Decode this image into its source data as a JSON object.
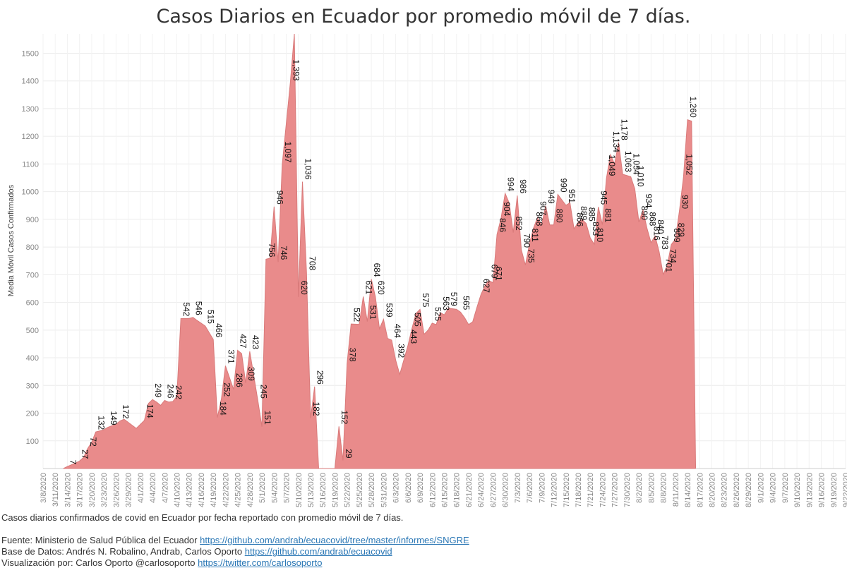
{
  "chart_data": {
    "type": "area",
    "title": "Casos Diarios en Ecuador por promedio móvil de 7 días.",
    "ylabel": "Media Móvil Casos Confirmados",
    "xlabel": "",
    "ylim": [
      0,
      1570
    ],
    "yticks": [
      100,
      200,
      300,
      400,
      500,
      600,
      700,
      800,
      900,
      1000,
      1100,
      1200,
      1300,
      1400,
      1500
    ],
    "x_range": [
      "2020-03-08",
      "2020-09-22"
    ],
    "xtick_labels": [
      "3/8/2020",
      "3/11/2020",
      "3/14/2020",
      "3/17/2020",
      "3/20/2020",
      "3/23/2020",
      "3/26/2020",
      "3/29/2020",
      "4/1/2020",
      "4/4/2020",
      "4/7/2020",
      "4/10/2020",
      "4/13/2020",
      "4/16/2020",
      "4/19/2020",
      "4/22/2020",
      "4/25/2020",
      "4/28/2020",
      "5/1/2020",
      "5/4/2020",
      "5/7/2020",
      "5/10/2020",
      "5/13/2020",
      "5/16/2020",
      "5/19/2020",
      "5/22/2020",
      "5/25/2020",
      "5/28/2020",
      "5/31/2020",
      "6/3/2020",
      "6/6/2020",
      "6/9/2020",
      "6/12/2020",
      "6/15/2020",
      "6/18/2020",
      "6/21/2020",
      "6/24/2020",
      "6/27/2020",
      "6/30/2020",
      "7/3/2020",
      "7/6/2020",
      "7/9/2020",
      "7/12/2020",
      "7/15/2020",
      "7/18/2020",
      "7/21/2020",
      "7/24/2020",
      "7/27/2020",
      "7/30/2020",
      "8/2/2020",
      "8/5/2020",
      "8/8/2020",
      "8/11/2020",
      "8/14/2020",
      "8/17/2020",
      "8/20/2020",
      "8/23/2020",
      "8/26/2020",
      "8/29/2020",
      "9/1/2020",
      "9/4/2020",
      "9/7/2020",
      "9/10/2020",
      "9/13/2020",
      "9/16/2020",
      "9/19/2020",
      "9/22/2020"
    ],
    "grid": true,
    "color": "#e98b8b",
    "points": [
      {
        "x": "2020-03-13",
        "y": 0
      },
      {
        "x": "2020-03-14",
        "y": 7
      },
      {
        "x": "2020-03-16",
        "y": 20
      },
      {
        "x": "2020-03-17",
        "y": 27
      },
      {
        "x": "2020-03-18",
        "y": 40
      },
      {
        "x": "2020-03-19",
        "y": 72
      },
      {
        "x": "2020-03-20",
        "y": 95
      },
      {
        "x": "2020-03-21",
        "y": 132
      },
      {
        "x": "2020-03-23",
        "y": 140
      },
      {
        "x": "2020-03-24",
        "y": 149
      },
      {
        "x": "2020-03-26",
        "y": 160
      },
      {
        "x": "2020-03-27",
        "y": 172
      },
      {
        "x": "2020-03-28",
        "y": 178
      },
      {
        "x": "2020-03-31",
        "y": 145
      },
      {
        "x": "2020-04-02",
        "y": 174
      },
      {
        "x": "2020-04-03",
        "y": 235
      },
      {
        "x": "2020-04-04",
        "y": 249
      },
      {
        "x": "2020-04-05",
        "y": 240
      },
      {
        "x": "2020-04-06",
        "y": 228
      },
      {
        "x": "2020-04-07",
        "y": 246
      },
      {
        "x": "2020-04-08",
        "y": 240
      },
      {
        "x": "2020-04-09",
        "y": 242
      },
      {
        "x": "2020-04-10",
        "y": 260
      },
      {
        "x": "2020-04-11",
        "y": 542
      },
      {
        "x": "2020-04-13",
        "y": 542
      },
      {
        "x": "2020-04-14",
        "y": 546
      },
      {
        "x": "2020-04-15",
        "y": 535
      },
      {
        "x": "2020-04-17",
        "y": 515
      },
      {
        "x": "2020-04-19",
        "y": 466
      },
      {
        "x": "2020-04-20",
        "y": 184
      },
      {
        "x": "2020-04-21",
        "y": 252
      },
      {
        "x": "2020-04-22",
        "y": 371
      },
      {
        "x": "2020-04-24",
        "y": 286
      },
      {
        "x": "2020-04-25",
        "y": 427
      },
      {
        "x": "2020-04-26",
        "y": 415
      },
      {
        "x": "2020-04-27",
        "y": 309
      },
      {
        "x": "2020-04-28",
        "y": 423
      },
      {
        "x": "2020-04-30",
        "y": 245
      },
      {
        "x": "2020-05-01",
        "y": 151
      },
      {
        "x": "2020-05-02",
        "y": 756
      },
      {
        "x": "2020-05-03",
        "y": 760
      },
      {
        "x": "2020-05-04",
        "y": 946
      },
      {
        "x": "2020-05-05",
        "y": 746
      },
      {
        "x": "2020-05-06",
        "y": 1097
      },
      {
        "x": "2020-05-08",
        "y": 1393
      },
      {
        "x": "2020-05-09",
        "y": 1570
      },
      {
        "x": "2020-05-10",
        "y": 620
      },
      {
        "x": "2020-05-11",
        "y": 1036
      },
      {
        "x": "2020-05-12",
        "y": 708
      },
      {
        "x": "2020-05-13",
        "y": 182
      },
      {
        "x": "2020-05-14",
        "y": 296
      },
      {
        "x": "2020-05-15",
        "y": 0
      },
      {
        "x": "2020-05-19",
        "y": 0
      },
      {
        "x": "2020-05-20",
        "y": 152
      },
      {
        "x": "2020-05-21",
        "y": 29
      },
      {
        "x": "2020-05-22",
        "y": 378
      },
      {
        "x": "2020-05-23",
        "y": 522
      },
      {
        "x": "2020-05-25",
        "y": 521
      },
      {
        "x": "2020-05-26",
        "y": 621
      },
      {
        "x": "2020-05-27",
        "y": 531
      },
      {
        "x": "2020-05-28",
        "y": 684
      },
      {
        "x": "2020-05-29",
        "y": 620
      },
      {
        "x": "2020-05-30",
        "y": 505
      },
      {
        "x": "2020-05-31",
        "y": 539
      },
      {
        "x": "2020-06-01",
        "y": 470
      },
      {
        "x": "2020-06-02",
        "y": 464
      },
      {
        "x": "2020-06-03",
        "y": 392
      },
      {
        "x": "2020-06-04",
        "y": 340
      },
      {
        "x": "2020-06-06",
        "y": 443
      },
      {
        "x": "2020-06-07",
        "y": 505
      },
      {
        "x": "2020-06-08",
        "y": 560
      },
      {
        "x": "2020-06-09",
        "y": 575
      },
      {
        "x": "2020-06-10",
        "y": 485
      },
      {
        "x": "2020-06-11",
        "y": 500
      },
      {
        "x": "2020-06-12",
        "y": 525
      },
      {
        "x": "2020-06-13",
        "y": 520
      },
      {
        "x": "2020-06-14",
        "y": 563
      },
      {
        "x": "2020-06-15",
        "y": 555
      },
      {
        "x": "2020-06-16",
        "y": 579
      },
      {
        "x": "2020-06-18",
        "y": 575
      },
      {
        "x": "2020-06-19",
        "y": 565
      },
      {
        "x": "2020-06-20",
        "y": 545
      },
      {
        "x": "2020-06-21",
        "y": 520
      },
      {
        "x": "2020-06-22",
        "y": 530
      },
      {
        "x": "2020-06-23",
        "y": 580
      },
      {
        "x": "2020-06-24",
        "y": 627
      },
      {
        "x": "2020-06-25",
        "y": 660
      },
      {
        "x": "2020-06-26",
        "y": 679
      },
      {
        "x": "2020-06-27",
        "y": 671
      },
      {
        "x": "2020-06-28",
        "y": 846
      },
      {
        "x": "2020-06-29",
        "y": 904
      },
      {
        "x": "2020-06-30",
        "y": 994
      },
      {
        "x": "2020-07-01",
        "y": 960
      },
      {
        "x": "2020-07-02",
        "y": 852
      },
      {
        "x": "2020-07-03",
        "y": 986
      },
      {
        "x": "2020-07-04",
        "y": 790
      },
      {
        "x": "2020-07-05",
        "y": 735
      },
      {
        "x": "2020-07-06",
        "y": 811
      },
      {
        "x": "2020-07-07",
        "y": 868
      },
      {
        "x": "2020-07-08",
        "y": 907
      },
      {
        "x": "2020-07-09",
        "y": 880
      },
      {
        "x": "2020-07-10",
        "y": 949
      },
      {
        "x": "2020-07-11",
        "y": 880
      },
      {
        "x": "2020-07-12",
        "y": 880
      },
      {
        "x": "2020-07-13",
        "y": 990
      },
      {
        "x": "2020-07-15",
        "y": 951
      },
      {
        "x": "2020-07-16",
        "y": 960
      },
      {
        "x": "2020-07-17",
        "y": 866
      },
      {
        "x": "2020-07-18",
        "y": 889
      },
      {
        "x": "2020-07-19",
        "y": 900
      },
      {
        "x": "2020-07-20",
        "y": 885
      },
      {
        "x": "2020-07-21",
        "y": 833
      },
      {
        "x": "2020-07-22",
        "y": 810
      },
      {
        "x": "2020-07-23",
        "y": 945
      },
      {
        "x": "2020-07-24",
        "y": 881
      },
      {
        "x": "2020-07-25",
        "y": 1049
      },
      {
        "x": "2020-07-26",
        "y": 1134
      },
      {
        "x": "2020-07-27",
        "y": 1100
      },
      {
        "x": "2020-07-28",
        "y": 1178
      },
      {
        "x": "2020-07-29",
        "y": 1063
      },
      {
        "x": "2020-07-31",
        "y": 1054
      },
      {
        "x": "2020-08-01",
        "y": 1010
      },
      {
        "x": "2020-08-02",
        "y": 890
      },
      {
        "x": "2020-08-03",
        "y": 934
      },
      {
        "x": "2020-08-04",
        "y": 868
      },
      {
        "x": "2020-08-05",
        "y": 816
      },
      {
        "x": "2020-08-06",
        "y": 840
      },
      {
        "x": "2020-08-07",
        "y": 783
      },
      {
        "x": "2020-08-08",
        "y": 701
      },
      {
        "x": "2020-08-09",
        "y": 734
      },
      {
        "x": "2020-08-10",
        "y": 809
      },
      {
        "x": "2020-08-11",
        "y": 829
      },
      {
        "x": "2020-08-12",
        "y": 930
      },
      {
        "x": "2020-08-13",
        "y": 1052
      },
      {
        "x": "2020-08-14",
        "y": 1260
      },
      {
        "x": "2020-08-15",
        "y": 1255
      },
      {
        "x": "2020-08-16",
        "y": 0
      }
    ],
    "data_labels": [
      {
        "text": "7",
        "x": "2020-03-14",
        "y": 7
      },
      {
        "text": "27",
        "x": "2020-03-17",
        "y": 27
      },
      {
        "text": "72",
        "x": "2020-03-19",
        "y": 72
      },
      {
        "text": "132",
        "x": "2020-03-21",
        "y": 132
      },
      {
        "text": "149",
        "x": "2020-03-24",
        "y": 149
      },
      {
        "text": "172",
        "x": "2020-03-27",
        "y": 172
      },
      {
        "text": "174",
        "x": "2020-04-02",
        "y": 174
      },
      {
        "text": "249",
        "x": "2020-04-04",
        "y": 249
      },
      {
        "text": "246",
        "x": "2020-04-07",
        "y": 246
      },
      {
        "text": "242",
        "x": "2020-04-09",
        "y": 242
      },
      {
        "text": "542",
        "x": "2020-04-11",
        "y": 542
      },
      {
        "text": "546",
        "x": "2020-04-14",
        "y": 546
      },
      {
        "text": "515",
        "x": "2020-04-17",
        "y": 515
      },
      {
        "text": "466",
        "x": "2020-04-19",
        "y": 466
      },
      {
        "text": "184",
        "x": "2020-04-20",
        "y": 184
      },
      {
        "text": "252",
        "x": "2020-04-21",
        "y": 252
      },
      {
        "text": "371",
        "x": "2020-04-22",
        "y": 371
      },
      {
        "text": "286",
        "x": "2020-04-24",
        "y": 286
      },
      {
        "text": "427",
        "x": "2020-04-25",
        "y": 427
      },
      {
        "text": "309",
        "x": "2020-04-27",
        "y": 309
      },
      {
        "text": "423",
        "x": "2020-04-28",
        "y": 423
      },
      {
        "text": "245",
        "x": "2020-04-30",
        "y": 245
      },
      {
        "text": "151",
        "x": "2020-05-01",
        "y": 151
      },
      {
        "text": "756",
        "x": "2020-05-02",
        "y": 756
      },
      {
        "text": "946",
        "x": "2020-05-04",
        "y": 946
      },
      {
        "text": "746",
        "x": "2020-05-05",
        "y": 746
      },
      {
        "text": "1,097",
        "x": "2020-05-06",
        "y": 1097
      },
      {
        "text": "1,393",
        "x": "2020-05-08",
        "y": 1393
      },
      {
        "text": "620",
        "x": "2020-05-10",
        "y": 620
      },
      {
        "text": "1,036",
        "x": "2020-05-11",
        "y": 1036
      },
      {
        "text": "708",
        "x": "2020-05-12",
        "y": 708
      },
      {
        "text": "182",
        "x": "2020-05-13",
        "y": 182
      },
      {
        "text": "296",
        "x": "2020-05-14",
        "y": 296
      },
      {
        "text": "152",
        "x": "2020-05-20",
        "y": 152
      },
      {
        "text": "29",
        "x": "2020-05-21",
        "y": 29
      },
      {
        "text": "378",
        "x": "2020-05-22",
        "y": 378
      },
      {
        "text": "522",
        "x": "2020-05-23",
        "y": 522
      },
      {
        "text": "621",
        "x": "2020-05-26",
        "y": 621
      },
      {
        "text": "531",
        "x": "2020-05-27",
        "y": 531
      },
      {
        "text": "684",
        "x": "2020-05-28",
        "y": 684
      },
      {
        "text": "620",
        "x": "2020-05-29",
        "y": 620
      },
      {
        "text": "539",
        "x": "2020-05-31",
        "y": 539
      },
      {
        "text": "464",
        "x": "2020-06-02",
        "y": 464
      },
      {
        "text": "392",
        "x": "2020-06-03",
        "y": 392
      },
      {
        "text": "443",
        "x": "2020-06-06",
        "y": 443
      },
      {
        "text": "505",
        "x": "2020-06-07",
        "y": 505
      },
      {
        "text": "575",
        "x": "2020-06-09",
        "y": 575
      },
      {
        "text": "525",
        "x": "2020-06-12",
        "y": 525
      },
      {
        "text": "563",
        "x": "2020-06-14",
        "y": 563
      },
      {
        "text": "579",
        "x": "2020-06-16",
        "y": 579
      },
      {
        "text": "565",
        "x": "2020-06-19",
        "y": 565
      },
      {
        "text": "627",
        "x": "2020-06-24",
        "y": 627
      },
      {
        "text": "679",
        "x": "2020-06-26",
        "y": 679
      },
      {
        "text": "671",
        "x": "2020-06-27",
        "y": 671
      },
      {
        "text": "846",
        "x": "2020-06-28",
        "y": 846
      },
      {
        "text": "904",
        "x": "2020-06-29",
        "y": 904
      },
      {
        "text": "994",
        "x": "2020-06-30",
        "y": 994
      },
      {
        "text": "852",
        "x": "2020-07-02",
        "y": 852
      },
      {
        "text": "986",
        "x": "2020-07-03",
        "y": 986
      },
      {
        "text": "790",
        "x": "2020-07-04",
        "y": 790
      },
      {
        "text": "735",
        "x": "2020-07-05",
        "y": 735
      },
      {
        "text": "811",
        "x": "2020-07-06",
        "y": 811
      },
      {
        "text": "868",
        "x": "2020-07-07",
        "y": 868
      },
      {
        "text": "907",
        "x": "2020-07-08",
        "y": 907
      },
      {
        "text": "949",
        "x": "2020-07-10",
        "y": 949
      },
      {
        "text": "880",
        "x": "2020-07-12",
        "y": 880
      },
      {
        "text": "990",
        "x": "2020-07-13",
        "y": 990
      },
      {
        "text": "951",
        "x": "2020-07-15",
        "y": 951
      },
      {
        "text": "866",
        "x": "2020-07-17",
        "y": 866
      },
      {
        "text": "889",
        "x": "2020-07-18",
        "y": 889
      },
      {
        "text": "885",
        "x": "2020-07-20",
        "y": 885
      },
      {
        "text": "833",
        "x": "2020-07-21",
        "y": 833
      },
      {
        "text": "810",
        "x": "2020-07-22",
        "y": 810
      },
      {
        "text": "945",
        "x": "2020-07-23",
        "y": 945
      },
      {
        "text": "881",
        "x": "2020-07-24",
        "y": 881
      },
      {
        "text": "1,049",
        "x": "2020-07-25",
        "y": 1049
      },
      {
        "text": "1,134",
        "x": "2020-07-26",
        "y": 1134
      },
      {
        "text": "1,178",
        "x": "2020-07-28",
        "y": 1178
      },
      {
        "text": "1,063",
        "x": "2020-07-29",
        "y": 1063
      },
      {
        "text": "1,054",
        "x": "2020-07-31",
        "y": 1054
      },
      {
        "text": "1,010",
        "x": "2020-08-01",
        "y": 1010
      },
      {
        "text": "890",
        "x": "2020-08-02",
        "y": 890
      },
      {
        "text": "934",
        "x": "2020-08-03",
        "y": 934
      },
      {
        "text": "868",
        "x": "2020-08-04",
        "y": 868
      },
      {
        "text": "816",
        "x": "2020-08-05",
        "y": 816
      },
      {
        "text": "840",
        "x": "2020-08-06",
        "y": 840
      },
      {
        "text": "783",
        "x": "2020-08-07",
        "y": 783
      },
      {
        "text": "701",
        "x": "2020-08-08",
        "y": 701
      },
      {
        "text": "734",
        "x": "2020-08-09",
        "y": 734
      },
      {
        "text": "809",
        "x": "2020-08-10",
        "y": 809
      },
      {
        "text": "829",
        "x": "2020-08-11",
        "y": 829
      },
      {
        "text": "930",
        "x": "2020-08-12",
        "y": 930
      },
      {
        "text": "1,052",
        "x": "2020-08-13",
        "y": 1052
      },
      {
        "text": "1,260",
        "x": "2020-08-14",
        "y": 1260
      }
    ]
  },
  "caption": "Casos diarios confirmados de covid en Ecuador por fecha reportado con promedio móvil de 7 días.",
  "sources": {
    "fuente_text": "Fuente: Ministerio de Salud Pública del Ecuador",
    "fuente_link": "https://github.com/andrab/ecuacovid/tree/master/informes/SNGRE",
    "base_text": "Base de Datos: Andrés N. Robalino, Andrab, Carlos Oporto",
    "base_link": "https://github.com/andrab/ecuacovid",
    "vis_text": "Visualización por: Carlos Oporto @carlosoporto",
    "vis_link": "https://twitter.com/carlosoporto"
  }
}
